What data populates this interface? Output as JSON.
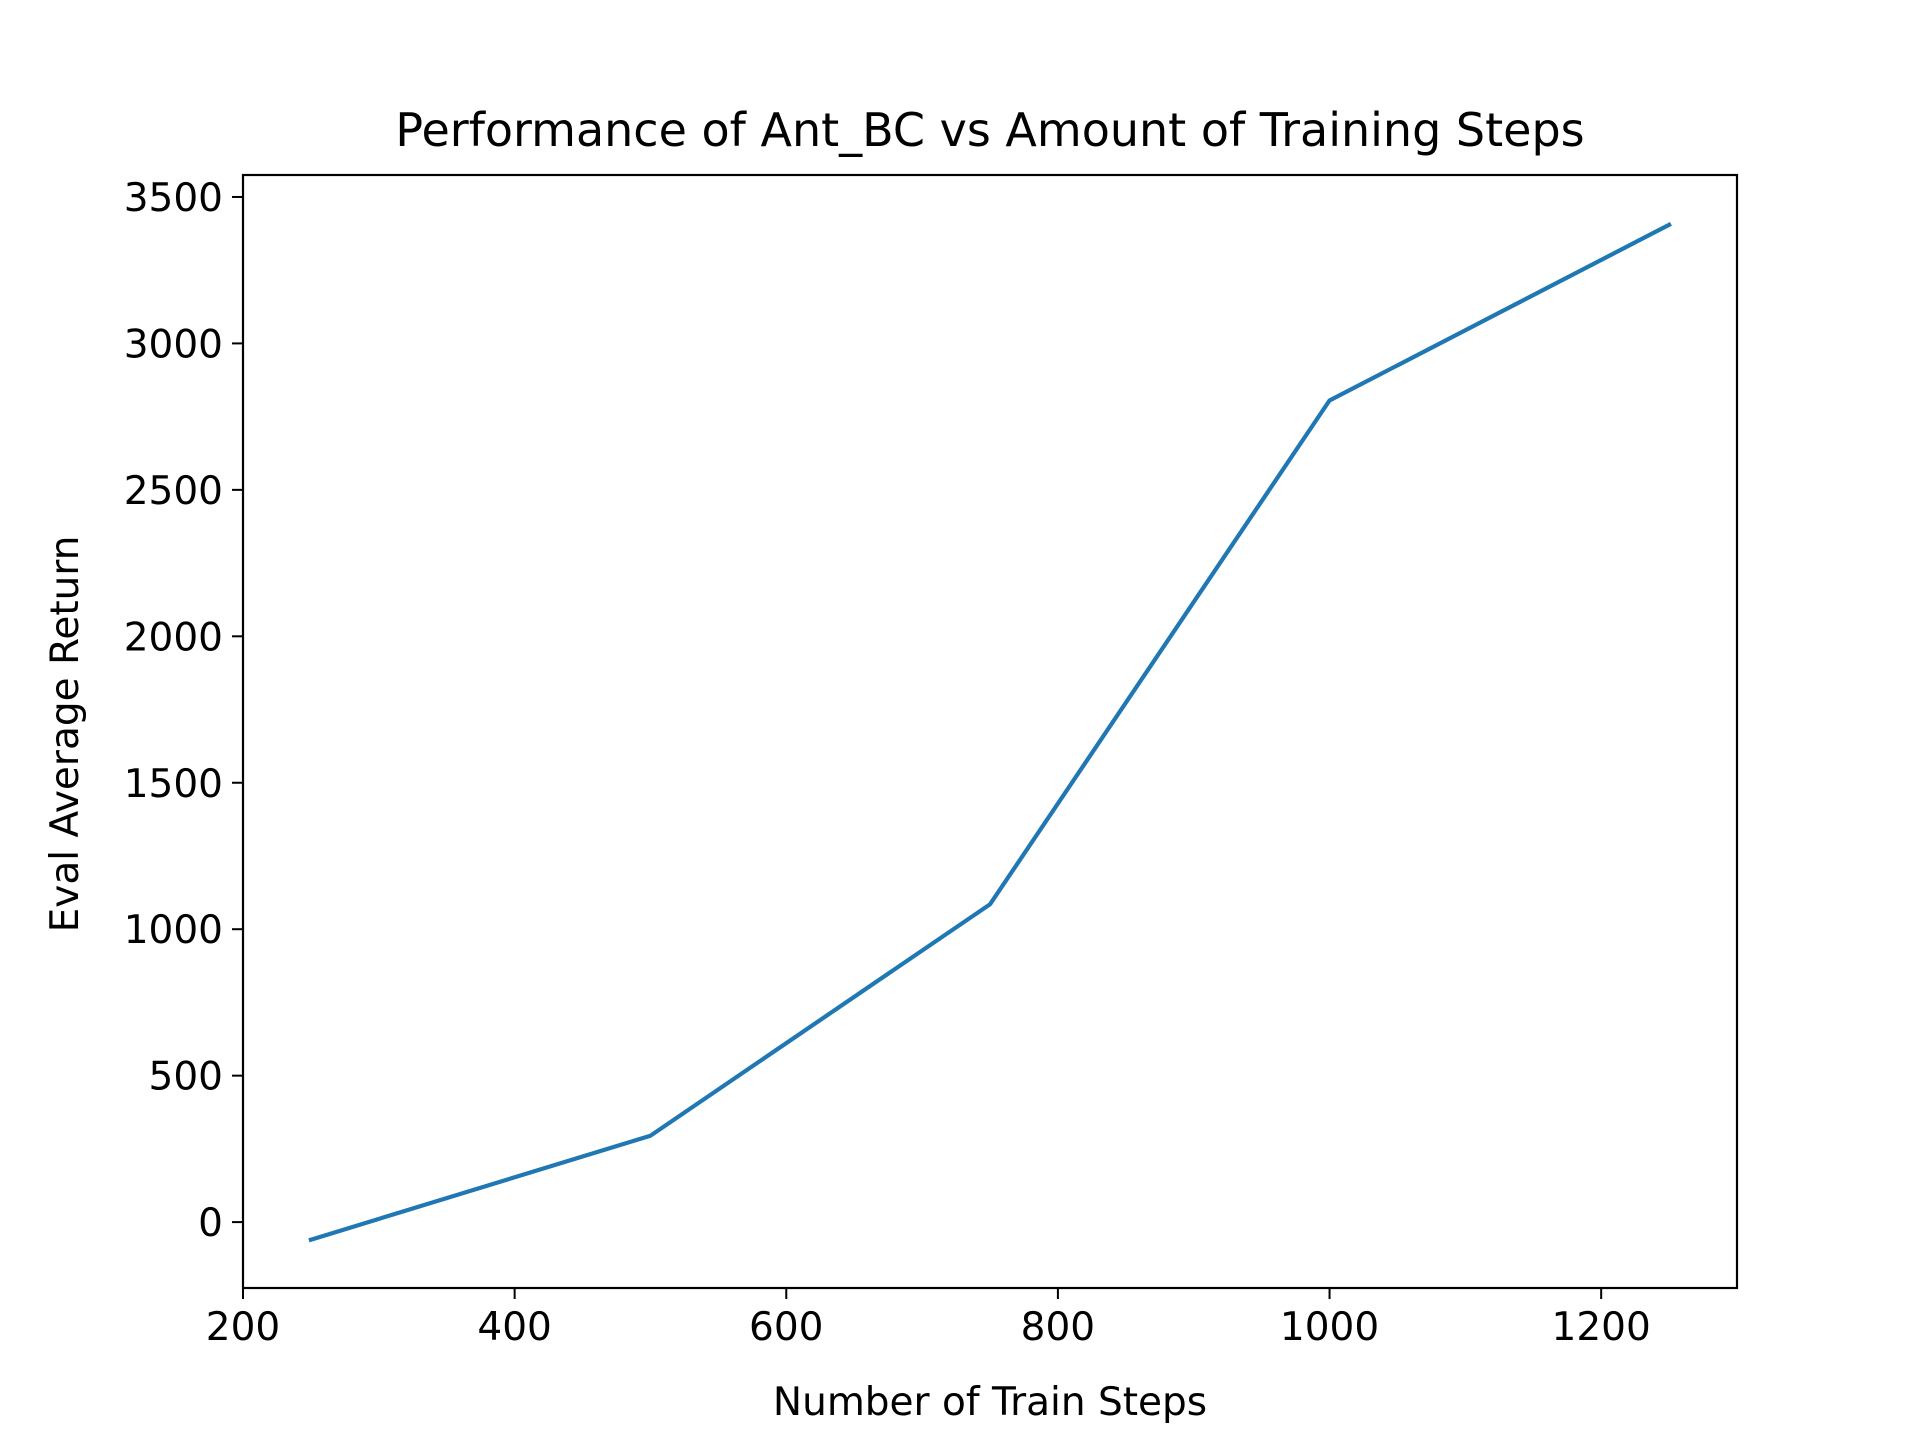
{
  "chart_data": {
    "type": "line",
    "title": "Performance of Ant_BC vs Amount of Training Steps",
    "xlabel": "Number of Train Steps",
    "ylabel": "Eval Average Return",
    "xlim": [
      200,
      1300
    ],
    "ylim": [
      -225,
      3575
    ],
    "xticks": [
      200,
      400,
      600,
      800,
      1000,
      1200
    ],
    "yticks": [
      0,
      500,
      1000,
      1500,
      2000,
      2500,
      3000,
      3500
    ],
    "grid": false,
    "legend": "none",
    "series": [
      {
        "color": "#1f77b4",
        "x": [
          250,
          500,
          750,
          1000,
          1250
        ],
        "y": [
          -60,
          295,
          1085,
          2805,
          3405
        ]
      }
    ]
  }
}
